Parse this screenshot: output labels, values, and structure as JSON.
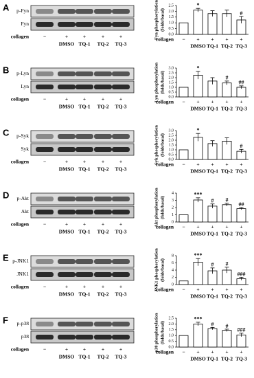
{
  "chart_data": [
    {
      "type": "bar",
      "letter": "A",
      "blot_rows": [
        "p-Fyn",
        "Fyn"
      ],
      "ylabel": [
        "Fyn phosphorylation",
        "(folds/basal)"
      ],
      "collagen_label": "collagen",
      "collagen": [
        "−",
        "+",
        "+",
        "+",
        "+"
      ],
      "categories": [
        null,
        "DMSO",
        "TQ-1",
        "TQ-2",
        "TQ-3"
      ],
      "values": [
        1,
        2.1,
        1.8,
        1.8,
        1.25
      ],
      "errors": [
        0,
        0.15,
        0.25,
        0.3,
        0.3
      ],
      "annotations": [
        null,
        "*",
        null,
        null,
        "#"
      ],
      "ylim": [
        0,
        2.5
      ],
      "yticks": [
        {
          "value": 0,
          "label": "0.0"
        },
        {
          "value": 0.5,
          "label": "0.5"
        },
        {
          "value": 1,
          "label": "1.0"
        },
        {
          "value": 1.5,
          "label": "1.5"
        },
        {
          "value": 2,
          "label": "2.0"
        },
        {
          "value": 2.5,
          "label": "2.5"
        }
      ],
      "color": "#ffffff"
    },
    {
      "type": "bar",
      "letter": "B",
      "blot_rows": [
        "p-Lyn",
        "Lyn"
      ],
      "ylabel": [
        "Lyn phosphorylation",
        "(folds/basal)"
      ],
      "collagen_label": "collagen",
      "collagen": [
        "−",
        "+",
        "+",
        "+",
        "+"
      ],
      "categories": [
        null,
        "DMSO",
        "TQ-1",
        "TQ-2",
        "TQ-3"
      ],
      "values": [
        1,
        2.25,
        1.65,
        1.45,
        1.0
      ],
      "errors": [
        0,
        0.4,
        0.35,
        0.2,
        0.15
      ],
      "annotations": [
        null,
        "*",
        null,
        "#",
        "##"
      ],
      "ylim": [
        0,
        3
      ],
      "yticks": [
        {
          "value": 0,
          "label": "0.0"
        },
        {
          "value": 0.5,
          "label": "0.5"
        },
        {
          "value": 1,
          "label": "1.0"
        },
        {
          "value": 1.5,
          "label": "1.5"
        },
        {
          "value": 2,
          "label": "2.0"
        },
        {
          "value": 2.5,
          "label": "2.5"
        },
        {
          "value": 3,
          "label": "3.0"
        }
      ],
      "color": "#ffffff"
    },
    {
      "type": "bar",
      "letter": "C",
      "blot_rows": [
        "p-Syk",
        "Syk"
      ],
      "ylabel": [
        "Syk phosphorylation",
        "(folds/basal)"
      ],
      "collagen_label": "collagen",
      "collagen": [
        "−",
        "+",
        "+",
        "+",
        "+"
      ],
      "categories": [
        null,
        "DMSO",
        "TQ-1",
        "TQ-2",
        "TQ-3"
      ],
      "values": [
        1,
        2.3,
        1.65,
        1.9,
        0.85
      ],
      "errors": [
        0,
        0.4,
        0.3,
        0.35,
        0.2
      ],
      "annotations": [
        null,
        "*",
        null,
        null,
        "#"
      ],
      "ylim": [
        0,
        3
      ],
      "yticks": [
        {
          "value": 0,
          "label": "0.0"
        },
        {
          "value": 0.5,
          "label": "0.5"
        },
        {
          "value": 1,
          "label": "1.0"
        },
        {
          "value": 1.5,
          "label": "1.5"
        },
        {
          "value": 2,
          "label": "2.0"
        },
        {
          "value": 2.5,
          "label": "2.5"
        },
        {
          "value": 3,
          "label": "3.0"
        }
      ],
      "color": "#ffffff"
    },
    {
      "type": "bar",
      "letter": "D",
      "blot_rows": [
        "p-Akt",
        "Akt"
      ],
      "ylabel": [
        "Akt phosphorylation",
        "(folds/basal)"
      ],
      "collagen_label": "collagen",
      "collagen": [
        "−",
        "+",
        "+",
        "+",
        "+"
      ],
      "categories": [
        null,
        "DMSO",
        "TQ-1",
        "TQ-2",
        "TQ-3"
      ],
      "values": [
        1,
        3.05,
        2.2,
        2.4,
        1.85
      ],
      "errors": [
        0,
        0.3,
        0.3,
        0.2,
        0.15
      ],
      "annotations": [
        null,
        "***",
        "#",
        "#",
        "##"
      ],
      "ylim": [
        0,
        4
      ],
      "yticks": [
        0,
        1,
        2,
        3,
        4
      ],
      "color": "#ffffff"
    },
    {
      "type": "bar",
      "letter": "E",
      "blot_rows": [
        "p-JNK1",
        "JNK1"
      ],
      "ylabel": [
        "JNK1 phosphorylation",
        "(folds/basal)"
      ],
      "collagen_label": "collagen",
      "collagen": [
        "−",
        "+",
        "+",
        "+",
        "+"
      ],
      "categories": [
        null,
        "DMSO",
        "TQ-1",
        "TQ-2",
        "TQ-3"
      ],
      "values": [
        1,
        6.2,
        3.8,
        4.0,
        1.6
      ],
      "errors": [
        0,
        1.0,
        0.8,
        0.8,
        0.4
      ],
      "annotations": [
        null,
        "***",
        "#",
        "#",
        "###"
      ],
      "ylim": [
        0,
        8
      ],
      "yticks": [
        0,
        2,
        4,
        6,
        8
      ],
      "color": "#ffffff"
    },
    {
      "type": "bar",
      "letter": "F",
      "blot_rows": [
        "p-p38",
        "p38"
      ],
      "ylabel": [
        "p38 phosphorylation",
        "(folds/basal)"
      ],
      "collagen_label": "collagen",
      "collagen": [
        "−",
        "+",
        "+",
        "+",
        "+"
      ],
      "categories": [
        null,
        "DMSO",
        "TQ-1",
        "TQ-2",
        "TQ-3"
      ],
      "values": [
        1,
        2.0,
        1.6,
        1.45,
        1.05
      ],
      "errors": [
        0,
        0.15,
        0.1,
        0.1,
        0.15
      ],
      "annotations": [
        null,
        "***",
        "#",
        "#",
        "###"
      ],
      "ylim": [
        0,
        2.5
      ],
      "yticks": [
        {
          "value": 0,
          "label": "0.0"
        },
        {
          "value": 0.5,
          "label": "0.5"
        },
        {
          "value": 1,
          "label": "1.0"
        },
        {
          "value": 1.5,
          "label": "1.5"
        },
        {
          "value": 2,
          "label": "2.0"
        },
        {
          "value": 2.5,
          "label": "2.5"
        }
      ],
      "color": "#ffffff"
    }
  ]
}
